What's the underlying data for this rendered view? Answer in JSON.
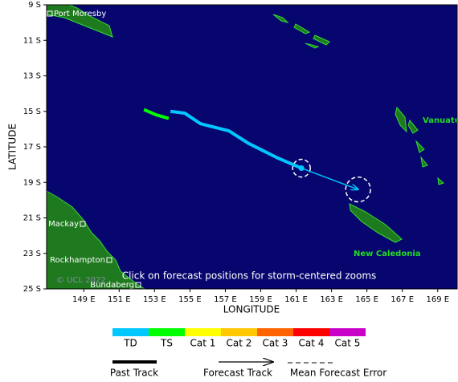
{
  "chart_data": {
    "type": "map",
    "xlabel": "LONGITUDE",
    "ylabel": "LATITUDE",
    "xlim": [
      146.9,
      170.1
    ],
    "ylim": [
      9,
      25
    ],
    "xticks": [
      {
        "value": 149,
        "label": "149 E"
      },
      {
        "value": 151,
        "label": "151 E"
      },
      {
        "value": 153,
        "label": "153 E"
      },
      {
        "value": 155,
        "label": "155 E"
      },
      {
        "value": 157,
        "label": "157 E"
      },
      {
        "value": 159,
        "label": "159 E"
      },
      {
        "value": 161,
        "label": "161 E"
      },
      {
        "value": 163,
        "label": "163 E"
      },
      {
        "value": 165,
        "label": "165 E"
      },
      {
        "value": 167,
        "label": "167 E"
      },
      {
        "value": 169,
        "label": "169 E"
      }
    ],
    "yticks": [
      {
        "value": 9,
        "label": "9 S"
      },
      {
        "value": 11,
        "label": "11 S"
      },
      {
        "value": 13,
        "label": "13 S"
      },
      {
        "value": 15,
        "label": "15 S"
      },
      {
        "value": 17,
        "label": "17 S"
      },
      {
        "value": 19,
        "label": "19 S"
      },
      {
        "value": 21,
        "label": "21 S"
      },
      {
        "value": 23,
        "label": "23 S"
      },
      {
        "value": 25,
        "label": "25 S"
      }
    ],
    "places": [
      "Port Moresby",
      "Mackay",
      "Rockhampton",
      "Bundaberg",
      "Vanuatu",
      "New Caledonia"
    ],
    "copyright": "© UCL 2022",
    "note": "Click on forecast positions for storm-centered zooms",
    "track": [
      {
        "color": "#00ff00",
        "lon": [
          152.4,
          153.1,
          153.8
        ],
        "lat": [
          14.9,
          15.2,
          15.4
        ]
      },
      {
        "color": "#00c8ff",
        "lon": [
          153.9,
          154.7,
          155.6,
          157.2,
          158.3,
          159.9,
          161.3
        ],
        "lat": [
          15.0,
          15.1,
          15.7,
          16.1,
          16.8,
          17.6,
          18.2
        ]
      }
    ],
    "forecast": {
      "color": "#00c8ff",
      "lon": [
        161.3,
        164.5
      ],
      "lat": [
        18.2,
        19.4
      ],
      "error_radius": [
        0.5,
        0.7
      ]
    },
    "intensity_legend": [
      {
        "label": "TD",
        "color": "#00c8ff"
      },
      {
        "label": "TS",
        "color": "#00ff00"
      },
      {
        "label": "Cat 1",
        "color": "#ffff00"
      },
      {
        "label": "Cat 2",
        "color": "#ffc800"
      },
      {
        "label": "Cat 3",
        "color": "#ff6400"
      },
      {
        "label": "Cat 4",
        "color": "#ff0000"
      },
      {
        "label": "Cat 5",
        "color": "#c800c8"
      }
    ],
    "track_legend": [
      "Past Track",
      "Forecast Track",
      "Mean Forecast Error"
    ]
  }
}
